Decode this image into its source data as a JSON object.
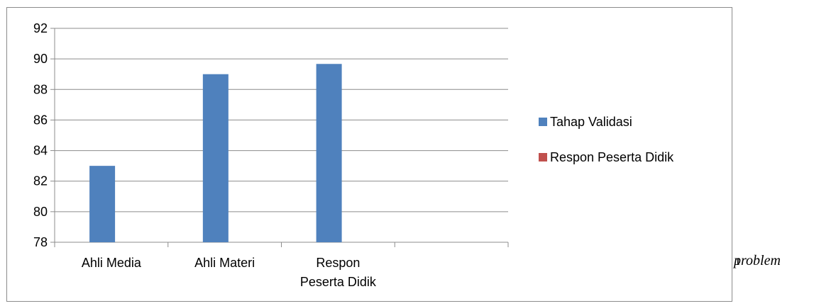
{
  "chart_data": {
    "type": "bar",
    "categories": [
      "Ahli Media",
      "Ahli Materi",
      "Respon Peserta Didik",
      ""
    ],
    "category_label_lines": [
      [
        "Ahli Media"
      ],
      [
        "Ahli Materi"
      ],
      [
        "Respon",
        "Peserta Didik"
      ],
      [
        ""
      ]
    ],
    "series": [
      {
        "name": "Tahap Validasi",
        "values": [
          83,
          89,
          89.67,
          null
        ],
        "color": "#4f81bd"
      },
      {
        "name": "Respon Peserta Didik",
        "values": [
          null,
          null,
          null,
          null
        ],
        "color": "#c0504d"
      }
    ],
    "ylim": [
      78,
      92
    ],
    "yticks": [
      78,
      80,
      82,
      84,
      86,
      88,
      90,
      92
    ],
    "grid": true,
    "legend_position": "right",
    "title": "",
    "xlabel": "",
    "ylabel": ""
  },
  "page": {
    "trailing_text": "problem",
    "trailing_fragment": "ı"
  }
}
